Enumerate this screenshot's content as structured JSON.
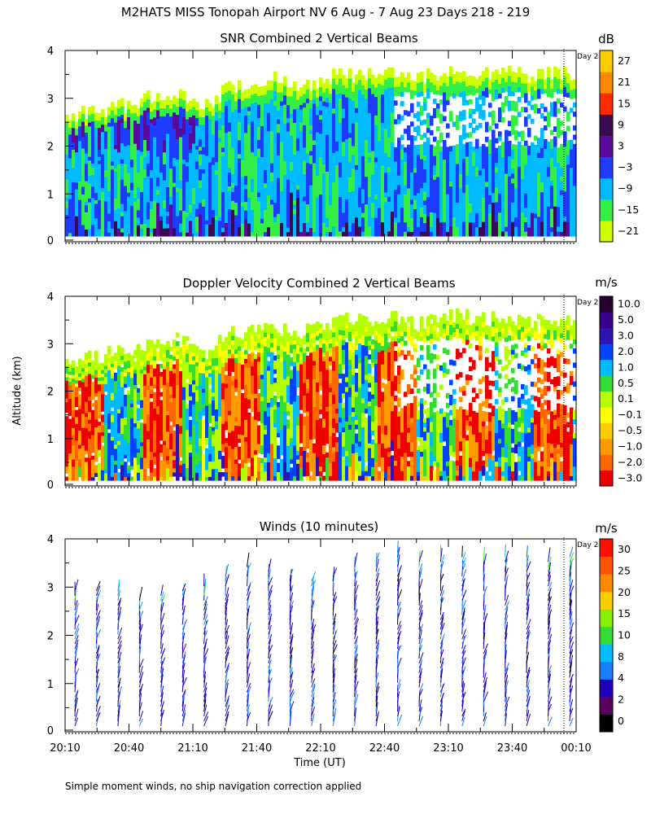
{
  "figure_title": "M2HATS MISS Tonopah Airport NV   6 Aug -  7 Aug 23 Days 218 - 219",
  "footnote": "Simple moment winds, no ship navigation correction applied",
  "y_axis_label": "Altitude (km)",
  "x_axis_label": "Time (UT)",
  "day_marker_label": "Day 2",
  "colors": {
    "snr": [
      "#ccff00",
      "#33ee44",
      "#00bbff",
      "#1e3cff",
      "#5a0a9a",
      "#3c0a50",
      "#ff2a00",
      "#ff8800",
      "#ffcc00"
    ],
    "velocity": [
      "#ee0000",
      "#ff6600",
      "#ff9900",
      "#ffcc00",
      "#ffff00",
      "#b4ff00",
      "#33dd33",
      "#00bbff",
      "#0044ff",
      "#2e14b4",
      "#3a008a",
      "#280030"
    ],
    "winds": [
      "#000000",
      "#580060",
      "#2200bb",
      "#1a7cff",
      "#00bbff",
      "#33dd33",
      "#88ee00",
      "#ffcc00",
      "#ff8800",
      "#ff5500",
      "#ff1100"
    ]
  },
  "chart_data": [
    {
      "type": "heatmap",
      "title": "SNR Combined 2 Vertical Beams",
      "xlabel": "Time (UT)",
      "ylabel": "Altitude (km)",
      "x_ticks": [
        "20:10",
        "20:40",
        "21:10",
        "21:40",
        "22:10",
        "22:40",
        "23:10",
        "23:40",
        "00:10"
      ],
      "y_ticks": [
        "0",
        "1",
        "2",
        "3",
        "4"
      ],
      "ylim": [
        0,
        4
      ],
      "colorbar": {
        "unit": "dB",
        "labels": [
          "27",
          "21",
          "15",
          "9",
          "3",
          "−3",
          "−9",
          "−15",
          "−21"
        ],
        "range": [
          -24,
          30
        ]
      },
      "echo_top_km": [
        2.6,
        2.7,
        2.8,
        2.9,
        3.1,
        3.1,
        2.8,
        3.2,
        3.3,
        3.4,
        3.2,
        3.4,
        3.5,
        3.5,
        3.6,
        3.4,
        3.5,
        3.6,
        3.5,
        3.6,
        3.5,
        3.5,
        3.5
      ]
    },
    {
      "type": "heatmap",
      "title": "Doppler Velocity Combined 2 Vertical Beams",
      "xlabel": "Time (UT)",
      "ylabel": "Altitude (km)",
      "x_ticks": [
        "20:10",
        "20:40",
        "21:10",
        "21:40",
        "22:10",
        "22:40",
        "23:10",
        "23:40",
        "00:10"
      ],
      "y_ticks": [
        "0",
        "1",
        "2",
        "3",
        "4"
      ],
      "ylim": [
        0,
        4
      ],
      "colorbar": {
        "unit": "m/s",
        "labels": [
          "10.0",
          "5.0",
          "3.0",
          "2.0",
          "1.0",
          "0.5",
          "0.1",
          "−0.1",
          "−0.5",
          "−1.0",
          "−2.0",
          "−3.0"
        ]
      },
      "echo_top_km": [
        2.6,
        2.7,
        2.8,
        2.9,
        3.1,
        3.1,
        2.8,
        3.2,
        3.3,
        3.4,
        3.2,
        3.4,
        3.5,
        3.5,
        3.6,
        3.4,
        3.5,
        3.6,
        3.5,
        3.6,
        3.5,
        3.5,
        3.5
      ]
    },
    {
      "type": "scatter",
      "title": "Winds (10 minutes)",
      "xlabel": "Time (UT)",
      "ylabel": "Altitude (km)",
      "x_ticks": [
        "20:10",
        "20:40",
        "21:10",
        "21:40",
        "22:10",
        "22:40",
        "23:10",
        "23:40",
        "00:10"
      ],
      "y_ticks": [
        "0",
        "1",
        "2",
        "3",
        "4"
      ],
      "ylim": [
        0,
        4
      ],
      "colorbar": {
        "unit": "m/s",
        "labels": [
          "30",
          "25",
          "20",
          "15",
          "10",
          "8",
          "4",
          "2",
          "0"
        ],
        "range": [
          0,
          33
        ]
      },
      "profile_top_km": [
        3.0,
        3.0,
        3.0,
        2.8,
        2.9,
        3.0,
        3.1,
        3.3,
        3.5,
        3.4,
        3.3,
        3.2,
        3.3,
        3.5,
        3.6,
        3.8,
        3.6,
        3.7,
        3.7,
        3.6,
        3.7,
        3.7,
        3.6,
        3.7
      ]
    }
  ]
}
